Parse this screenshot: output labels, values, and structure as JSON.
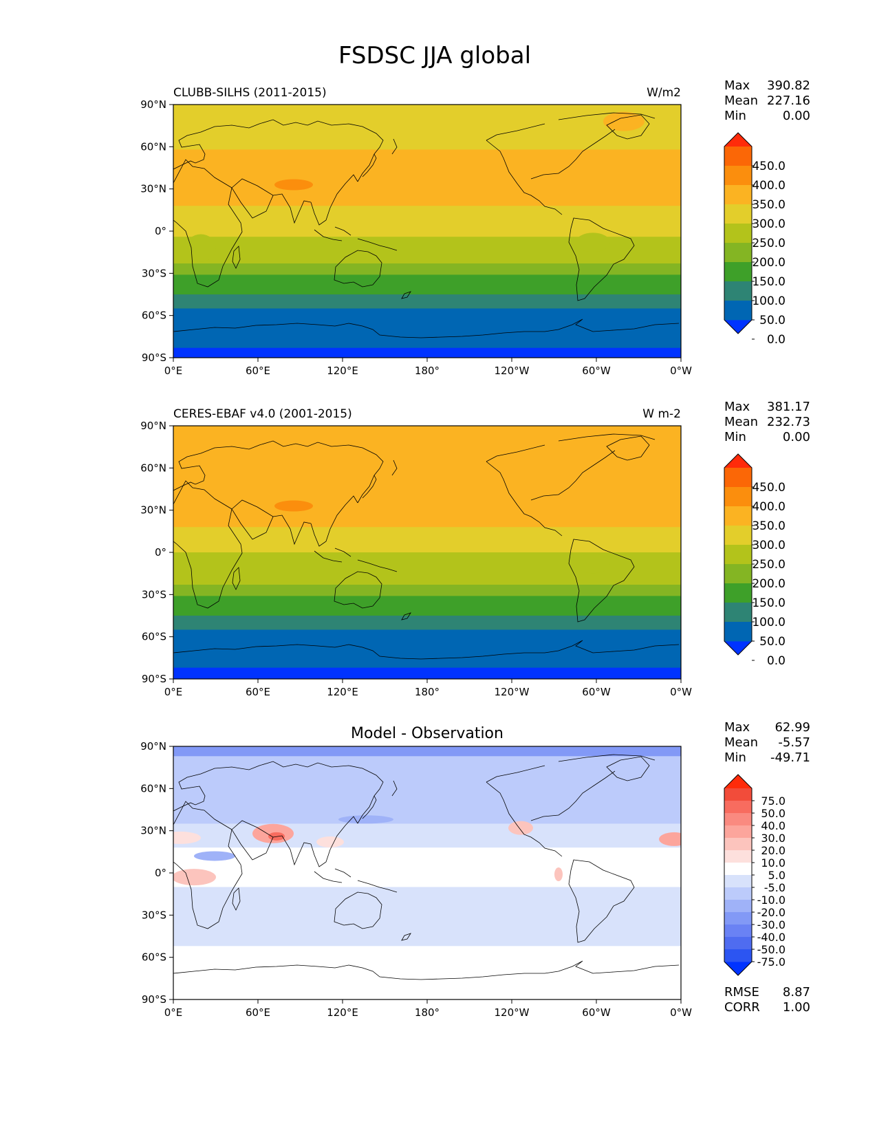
{
  "title": "FSDSC JJA global",
  "lat_ticks": [
    "90°N",
    "60°N",
    "30°N",
    "0°",
    "30°S",
    "60°S",
    "90°S"
  ],
  "lon_ticks": [
    "0°E",
    "60°E",
    "120°E",
    "180°",
    "120°W",
    "60°W",
    "0°W"
  ],
  "colors": {
    "field_levels": [
      "#0033ff",
      "#0066b3",
      "#2e8474",
      "#3ea029",
      "#84b523",
      "#b3c31b",
      "#e3ce2b",
      "#fbb322",
      "#fb8e0d",
      "#fb6706",
      "#ff2b0a"
    ],
    "diff_levels": [
      "#0033ff",
      "#2c55f2",
      "#4f6cf0",
      "#6a82f4",
      "#8299f6",
      "#9fb2f8",
      "#bccbfb",
      "#d8e2fb",
      "#ffffff",
      "#fde0dd",
      "#fcc4bd",
      "#fca59c",
      "#fa8a80",
      "#f86c5f",
      "#f24c3a",
      "#ff2b0a"
    ]
  },
  "panels": [
    {
      "id": "model",
      "left_title": "CLUBB-SILHS (2011-2015)",
      "center_title": "",
      "units": "W/m2",
      "stats": [
        {
          "label": "Max",
          "value": "390.82"
        },
        {
          "label": "Mean",
          "value": "227.16"
        },
        {
          "label": "Min",
          "value": "0.00"
        }
      ],
      "colorbar_labels": [
        "450.0",
        "400.0",
        "350.0",
        "300.0",
        "250.0",
        "200.0",
        "150.0",
        "100.0",
        "50.0",
        "0.0"
      ],
      "metrics": []
    },
    {
      "id": "obs",
      "left_title": "CERES-EBAF v4.0 (2001-2015)",
      "center_title": "",
      "units": "W m-2",
      "stats": [
        {
          "label": "Max",
          "value": "381.17"
        },
        {
          "label": "Mean",
          "value": "232.73"
        },
        {
          "label": "Min",
          "value": "0.00"
        }
      ],
      "colorbar_labels": [
        "450.0",
        "400.0",
        "350.0",
        "300.0",
        "250.0",
        "200.0",
        "150.0",
        "100.0",
        "50.0",
        "0.0"
      ],
      "metrics": []
    },
    {
      "id": "diff",
      "left_title": "",
      "center_title": "Model - Observation",
      "units": "",
      "stats": [
        {
          "label": "Max",
          "value": "62.99"
        },
        {
          "label": "Mean",
          "value": "-5.57"
        },
        {
          "label": "Min",
          "value": "-49.71"
        }
      ],
      "colorbar_labels": [
        "75.0",
        "50.0",
        "40.0",
        "30.0",
        "20.0",
        "10.0",
        "5.0",
        "-5.0",
        "-10.0",
        "-20.0",
        "-30.0",
        "-40.0",
        "-50.0",
        "-75.0"
      ],
      "metrics": [
        {
          "label": "RMSE",
          "value": "8.87"
        },
        {
          "label": "CORR",
          "value": "1.00"
        }
      ]
    }
  ]
}
